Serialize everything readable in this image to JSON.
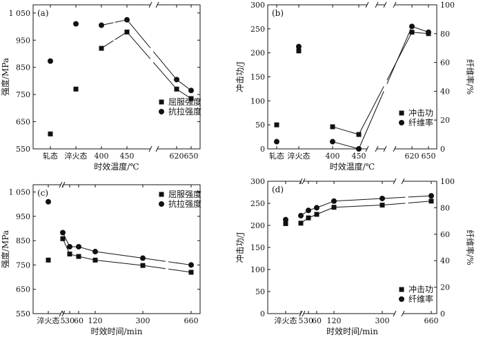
{
  "chart_data": [
    {
      "type": "scatter",
      "panel_label": "(a)",
      "xlabel": "时效温度/℃",
      "ylabel": "强度/MPa",
      "categories": [
        "轧态",
        "淬火态",
        "400",
        "450",
        "620",
        "650"
      ],
      "y_ticks": [
        "550",
        "650",
        "750",
        "850",
        "950",
        "1 050"
      ],
      "ylim": [
        550,
        1080
      ],
      "series": [
        {
          "name": "屈服强度",
          "marker": "square",
          "values": [
            605,
            770,
            920,
            980,
            770,
            735
          ]
        },
        {
          "name": "抗拉强度",
          "marker": "circle",
          "values": [
            873,
            1010,
            1005,
            1025,
            805,
            765
          ]
        }
      ],
      "legend_position": "bottom-right"
    },
    {
      "type": "scatter",
      "panel_label": "(b)",
      "xlabel": "时效温度/℃",
      "ylabel": "冲击功/J",
      "y2label": "纤维率/%",
      "categories": [
        "轧态",
        "淬火态",
        "400",
        "450",
        "620",
        "650"
      ],
      "y_ticks": [
        "0",
        "50",
        "100",
        "150",
        "200",
        "250",
        "300"
      ],
      "y2_ticks": [
        "0",
        "20",
        "40",
        "60",
        "80",
        "100"
      ],
      "ylim": [
        0,
        300
      ],
      "y2lim": [
        0,
        100
      ],
      "series": [
        {
          "name": "冲击功",
          "marker": "square",
          "values": [
            50,
            204,
            46,
            30,
            243,
            240
          ]
        },
        {
          "name": "纤维率",
          "marker": "circle",
          "values": [
            5,
            71,
            5,
            0,
            85,
            81
          ]
        }
      ],
      "legend_position": "bottom-right"
    },
    {
      "type": "scatter",
      "panel_label": "(c)",
      "xlabel": "时效时间/min",
      "ylabel": "强度/MPa",
      "categories": [
        "淬火态",
        "5",
        "30",
        "60",
        "120",
        "300",
        "660"
      ],
      "y_ticks": [
        "550",
        "650",
        "750",
        "850",
        "950",
        "1 050"
      ],
      "ylim": [
        550,
        1080
      ],
      "series": [
        {
          "name": "屈服强度",
          "marker": "square",
          "values": [
            770,
            858,
            795,
            785,
            770,
            748,
            720
          ]
        },
        {
          "name": "抗拉强度",
          "marker": "circle",
          "values": [
            1010,
            883,
            825,
            825,
            805,
            778,
            750
          ]
        }
      ],
      "legend_position": "top-right"
    },
    {
      "type": "scatter",
      "panel_label": "(d)",
      "xlabel": "时效时间/min",
      "ylabel": "冲击功/J",
      "y2label": "纤维率/%",
      "categories": [
        "淬火态",
        "5",
        "30",
        "60",
        "120",
        "300",
        "660"
      ],
      "y_ticks": [
        "0",
        "50",
        "100",
        "150",
        "200",
        "250",
        "300"
      ],
      "y2_ticks": [
        "0",
        "20",
        "40",
        "60",
        "80",
        "100"
      ],
      "ylim": [
        0,
        300
      ],
      "y2lim": [
        0,
        100
      ],
      "series": [
        {
          "name": "冲击功",
          "marker": "square",
          "values": [
            204,
            205,
            217,
            225,
            241,
            246,
            255
          ]
        },
        {
          "name": "纤维率",
          "marker": "circle",
          "values": [
            71,
            74,
            78,
            80,
            85,
            87,
            89
          ]
        }
      ],
      "legend_position": "bottom-right"
    }
  ]
}
